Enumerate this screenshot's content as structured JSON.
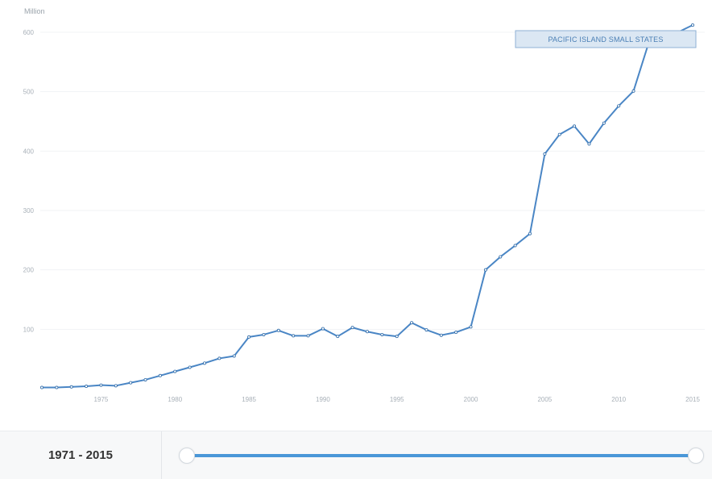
{
  "chart_data": {
    "type": "line",
    "unit_label": "Million",
    "x_range": [
      1971,
      2015
    ],
    "ylim": [
      0,
      600
    ],
    "y_ticks": [
      100,
      200,
      300,
      400,
      500,
      600
    ],
    "x_ticks": [
      1975,
      1980,
      1985,
      1990,
      1995,
      2000,
      2005,
      2010,
      2015
    ],
    "grid": true,
    "series": [
      {
        "name": "PACIFIC ISLAND SMALL STATES",
        "x": [
          1971,
          1972,
          1973,
          1974,
          1975,
          1976,
          1977,
          1978,
          1979,
          1980,
          1981,
          1982,
          1983,
          1984,
          1985,
          1986,
          1987,
          1988,
          1989,
          1990,
          1991,
          1992,
          1993,
          1994,
          1995,
          1996,
          1997,
          1998,
          1999,
          2000,
          2001,
          2002,
          2003,
          2004,
          2005,
          2006,
          2007,
          2008,
          2009,
          2010,
          2011,
          2012,
          2013,
          2014,
          2015
        ],
        "values": [
          2,
          2,
          3,
          4,
          6,
          5,
          10,
          15,
          22,
          29,
          36,
          43,
          51,
          55,
          87,
          91,
          98,
          89,
          89,
          101,
          88,
          103,
          96,
          91,
          88,
          111,
          99,
          90,
          95,
          104,
          200,
          222,
          241,
          261,
          395,
          428,
          442,
          412,
          447,
          476,
          501,
          580,
          590,
          600,
          612
        ]
      }
    ],
    "legend_placement": "top-right",
    "colors": {
      "series": "#4a86c5",
      "legend_bg": "#dbe7f3",
      "slider": "#4a97d8"
    }
  },
  "footer": {
    "range_label": "1971 - 2015"
  }
}
